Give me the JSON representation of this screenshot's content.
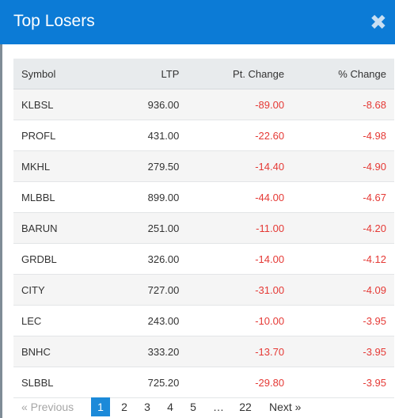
{
  "modal": {
    "title": "Top Losers",
    "close_glyph": "✖",
    "header_color": "#0c7bd6"
  },
  "table": {
    "headers": [
      "Symbol",
      "LTP",
      "Pt. Change",
      "% Change"
    ],
    "rows": [
      {
        "symbol": "KLBSL",
        "ltp": "936.00",
        "pt_change": "-89.00",
        "pct_change": "-8.68"
      },
      {
        "symbol": "PROFL",
        "ltp": "431.00",
        "pt_change": "-22.60",
        "pct_change": "-4.98"
      },
      {
        "symbol": "MKHL",
        "ltp": "279.50",
        "pt_change": "-14.40",
        "pct_change": "-4.90"
      },
      {
        "symbol": "MLBBL",
        "ltp": "899.00",
        "pt_change": "-44.00",
        "pct_change": "-4.67"
      },
      {
        "symbol": "BARUN",
        "ltp": "251.00",
        "pt_change": "-11.00",
        "pct_change": "-4.20"
      },
      {
        "symbol": "GRDBL",
        "ltp": "326.00",
        "pt_change": "-14.00",
        "pct_change": "-4.12"
      },
      {
        "symbol": "CITY",
        "ltp": "727.00",
        "pt_change": "-31.00",
        "pct_change": "-4.09"
      },
      {
        "symbol": "LEC",
        "ltp": "243.00",
        "pt_change": "-10.00",
        "pct_change": "-3.95"
      },
      {
        "symbol": "BNHC",
        "ltp": "333.20",
        "pt_change": "-13.70",
        "pct_change": "-3.95"
      },
      {
        "symbol": "SLBBL",
        "ltp": "725.20",
        "pt_change": "-29.80",
        "pct_change": "-3.95"
      }
    ],
    "negative_color": "#e53935"
  },
  "pagination": {
    "previous": "« Previous",
    "pages": [
      "1",
      "2",
      "3",
      "4",
      "5"
    ],
    "current": "1",
    "ellipsis": "…",
    "last": "22",
    "next": "Next »"
  }
}
